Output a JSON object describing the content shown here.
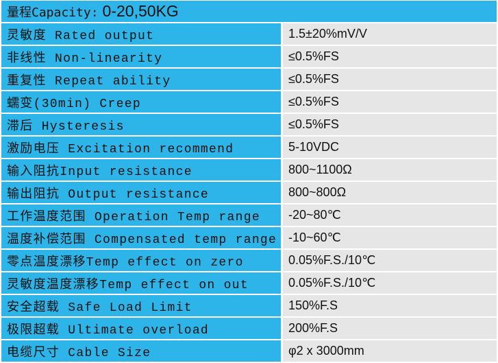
{
  "header": {
    "label": "量程Capacity:",
    "value": "0-20,50KG"
  },
  "rows": [
    {
      "label": "灵敏度 Rated output",
      "value": "1.5±20%mV/V"
    },
    {
      "label": "非线性 Non-linearity",
      "value": "≤0.5%FS"
    },
    {
      "label": "重复性 Repeat ability",
      "value": "≤0.5%FS"
    },
    {
      "label": "蠕变(30min) Creep",
      "value": "≤0.5%FS"
    },
    {
      "label": "滞后 Hysteresis",
      "value": "≤0.5%FS"
    },
    {
      "label": "激励电压 Excitation recommend",
      "value": "5-10VDC"
    },
    {
      "label": "输入阻抗Input resistance",
      "value": "800~1100Ω"
    },
    {
      "label": "输出阻抗 Output resistance",
      "value": "800~800Ω"
    },
    {
      "label": "工作温度范围 Operation Temp range",
      "value": "-20~80℃"
    },
    {
      "label": "温度补偿范围 Compensated temp range",
      "value": "-10~60℃"
    },
    {
      "label": "零点温度漂移Temp effect on zero",
      "value": "0.05%F.S./10℃"
    },
    {
      "label": "灵敏度温度漂移Temp effect on out",
      "value": "0.05%F.S./10℃"
    },
    {
      "label": "安全超载 Safe Load Limit",
      "value": "150%F.S"
    },
    {
      "label": "极限超载 Ultimate overload",
      "value": "200%F.S"
    },
    {
      "label": "电缆尺寸 Cable Size",
      "value": "φ2 x 3000mm"
    }
  ]
}
